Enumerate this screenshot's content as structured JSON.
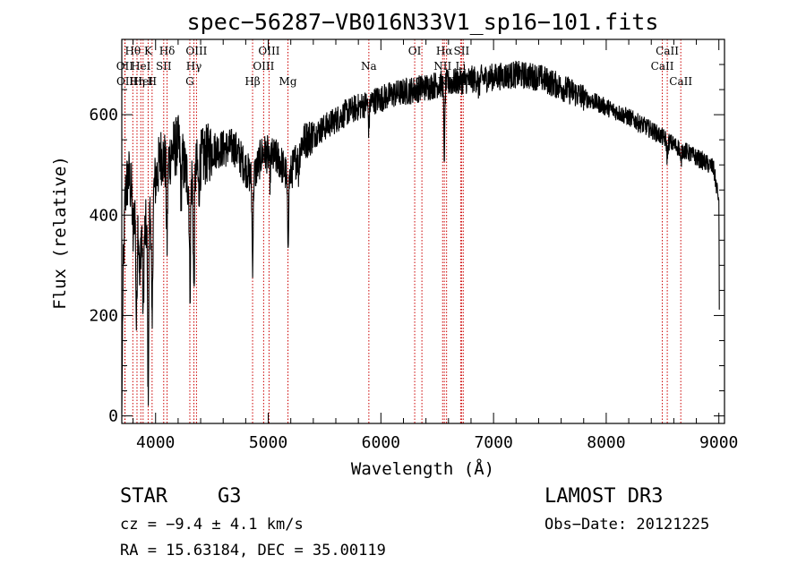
{
  "chart_data": {
    "type": "line",
    "title": "spec−56287−VB016N33V1_sp16−101.fits",
    "xlabel": "Wavelength (Å)",
    "ylabel": "Flux (relative)",
    "xlim": [
      3700,
      9050
    ],
    "ylim": [
      -15,
      750
    ],
    "xticks": [
      {
        "value": 4000,
        "label": "4000"
      },
      {
        "value": 5000,
        "label": "5000"
      },
      {
        "value": 6000,
        "label": "6000"
      },
      {
        "value": 7000,
        "label": "7000"
      },
      {
        "value": 8000,
        "label": "8000"
      },
      {
        "value": 9000,
        "label": "9000"
      }
    ],
    "yticks": [
      {
        "value": 0,
        "label": "0"
      },
      {
        "value": 200,
        "label": "200"
      },
      {
        "value": 400,
        "label": "400"
      },
      {
        "value": 600,
        "label": "600"
      }
    ],
    "continuum": [
      [
        3700,
        5
      ],
      [
        3710,
        250
      ],
      [
        3730,
        440
      ],
      [
        3760,
        480
      ],
      [
        3800,
        430
      ],
      [
        3850,
        380
      ],
      [
        3900,
        360
      ],
      [
        3950,
        400
      ],
      [
        4000,
        470
      ],
      [
        4050,
        520
      ],
      [
        4100,
        500
      ],
      [
        4150,
        530
      ],
      [
        4200,
        540
      ],
      [
        4300,
        460
      ],
      [
        4400,
        510
      ],
      [
        4500,
        530
      ],
      [
        4700,
        535
      ],
      [
        4860,
        470
      ],
      [
        4950,
        525
      ],
      [
        5100,
        510
      ],
      [
        5180,
        470
      ],
      [
        5300,
        545
      ],
      [
        5500,
        575
      ],
      [
        5700,
        605
      ],
      [
        5900,
        625
      ],
      [
        6100,
        640
      ],
      [
        6300,
        650
      ],
      [
        6500,
        660
      ],
      [
        6800,
        670
      ],
      [
        7000,
        675
      ],
      [
        7200,
        680
      ],
      [
        7400,
        675
      ],
      [
        7600,
        655
      ],
      [
        7800,
        635
      ],
      [
        8000,
        615
      ],
      [
        8200,
        595
      ],
      [
        8400,
        570
      ],
      [
        8600,
        540
      ],
      [
        8800,
        515
      ],
      [
        8950,
        495
      ],
      [
        9000,
        430
      ],
      [
        9005,
        170
      ]
    ],
    "absorption_lines": [
      {
        "w": 3800,
        "depth": 80
      },
      {
        "w": 3830,
        "depth": 220
      },
      {
        "w": 3860,
        "depth": 120
      },
      {
        "w": 3890,
        "depth": 150
      },
      {
        "w": 3934,
        "depth": 330
      },
      {
        "w": 3969,
        "depth": 280
      },
      {
        "w": 4101,
        "depth": 160
      },
      {
        "w": 4226,
        "depth": 70
      },
      {
        "w": 4305,
        "depth": 200
      },
      {
        "w": 4340,
        "depth": 240
      },
      {
        "w": 4383,
        "depth": 60
      },
      {
        "w": 4861,
        "depth": 160
      },
      {
        "w": 5015,
        "depth": 40
      },
      {
        "w": 5175,
        "depth": 120
      },
      {
        "w": 5270,
        "depth": 40
      },
      {
        "w": 5893,
        "depth": 50
      },
      {
        "w": 6563,
        "depth": 140
      },
      {
        "w": 6870,
        "depth": 25
      },
      {
        "w": 8542,
        "depth": 35
      },
      {
        "w": 8662,
        "depth": 35
      }
    ],
    "noise_amplitude": 28,
    "line_markers": [
      {
        "w": 3727,
        "label": "OII",
        "row": 2
      },
      {
        "w": 3729,
        "label": "OII",
        "row": 3
      },
      {
        "w": 3798,
        "label": "Hθ",
        "row": 1
      },
      {
        "w": 3835,
        "label": "Hη",
        "row": 3
      },
      {
        "w": 3869,
        "label": "HeI",
        "row": 2
      },
      {
        "w": 3889,
        "label": "HeI",
        "row": 3
      },
      {
        "w": 3934,
        "label": "K",
        "row": 1
      },
      {
        "w": 3969,
        "label": "H",
        "row": 3
      },
      {
        "w": 4072,
        "label": "SII",
        "row": 2
      },
      {
        "w": 4102,
        "label": "Hδ",
        "row": 1
      },
      {
        "w": 4304,
        "label": "G",
        "row": 3
      },
      {
        "w": 4340,
        "label": "Hγ",
        "row": 2
      },
      {
        "w": 4363,
        "label": "OIII",
        "row": 1
      },
      {
        "w": 4861,
        "label": "Hβ",
        "row": 3
      },
      {
        "w": 4959,
        "label": "OIII",
        "row": 2
      },
      {
        "w": 5007,
        "label": "OIII",
        "row": 1
      },
      {
        "w": 5175,
        "label": "Mg",
        "row": 3
      },
      {
        "w": 5893,
        "label": "Na",
        "row": 2
      },
      {
        "w": 6300,
        "label": "OI",
        "row": 1
      },
      {
        "w": 6364,
        "label": "OI",
        "row": 3
      },
      {
        "w": 6548,
        "label": "NII",
        "row": 2
      },
      {
        "w": 6563,
        "label": "Hα",
        "row": 1
      },
      {
        "w": 6583,
        "label": "NII",
        "row": 3
      },
      {
        "w": 6708,
        "label": "Li",
        "row": 2
      },
      {
        "w": 6716,
        "label": "SII",
        "row": 1
      },
      {
        "w": 6731,
        "label": "SII",
        "row": 3
      },
      {
        "w": 8498,
        "label": "CaII",
        "row": 2
      },
      {
        "w": 8542,
        "label": "CaII",
        "row": 1
      },
      {
        "w": 8662,
        "label": "CaII",
        "row": 3
      }
    ],
    "marker_color": "#cc0000",
    "line_color": "#000000"
  },
  "info": {
    "object_class": "STAR",
    "subclass": "G3",
    "velocity": "cz = −9.4 ± 4.1 km/s",
    "coords": "RA =  15.63184, DEC =  35.00119",
    "survey": "LAMOST DR3",
    "obs_date": "Obs−Date: 20121225"
  }
}
